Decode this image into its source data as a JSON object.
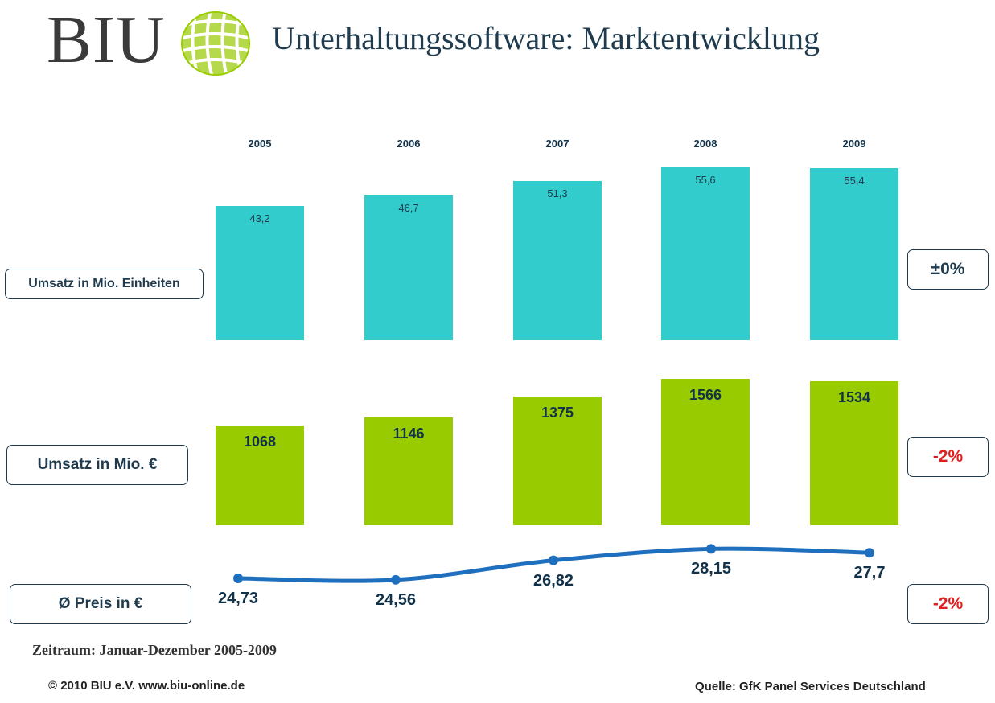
{
  "header": {
    "logo_text": "BIU",
    "title": "Unterhaltungssoftware: Marktentwicklung"
  },
  "colors": {
    "units_bar": "#33cccc",
    "revenue_bar": "#99cc00",
    "price_line": "#1f6fbf",
    "negative_change": "#e02020",
    "neutral_change": "#1f3b4d",
    "logo_globe": "#99cc00"
  },
  "row_labels": {
    "units": "Umsatz in Mio. Einheiten",
    "revenue": "Umsatz in Mio. €",
    "price": "Ø Preis in €"
  },
  "changes": {
    "units": "±0%",
    "revenue": "-2%",
    "price": "-2%"
  },
  "footer": {
    "period": "Zeitraum: Januar-Dezember 2005-2009",
    "copyright": "© 2010 BIU e.V.  www.biu-online.de",
    "source": "Quelle: GfK Panel Services Deutschland"
  },
  "chart_data": [
    {
      "type": "bar",
      "categories": [
        "2005",
        "2006",
        "2007",
        "2008",
        "2009"
      ],
      "values": [
        43.2,
        46.7,
        51.3,
        55.6,
        55.4
      ],
      "labels": [
        "43,2",
        "46,7",
        "51,3",
        "55,6",
        "55,4"
      ],
      "title": "Umsatz in Mio. Einheiten",
      "change": "±0%"
    },
    {
      "type": "bar",
      "categories": [
        "2005",
        "2006",
        "2007",
        "2008",
        "2009"
      ],
      "values": [
        1068,
        1146,
        1375,
        1566,
        1534
      ],
      "labels": [
        "1068",
        "1146",
        "1375",
        "1566",
        "1534"
      ],
      "title": "Umsatz in Mio. €",
      "change": "-2%"
    },
    {
      "type": "line",
      "categories": [
        "2005",
        "2006",
        "2007",
        "2008",
        "2009"
      ],
      "values": [
        24.73,
        24.56,
        26.82,
        28.15,
        27.7
      ],
      "labels": [
        "24,73",
        "24,56",
        "26,82",
        "28,15",
        "27,7"
      ],
      "title": "Ø Preis in €",
      "change": "-2%"
    }
  ]
}
